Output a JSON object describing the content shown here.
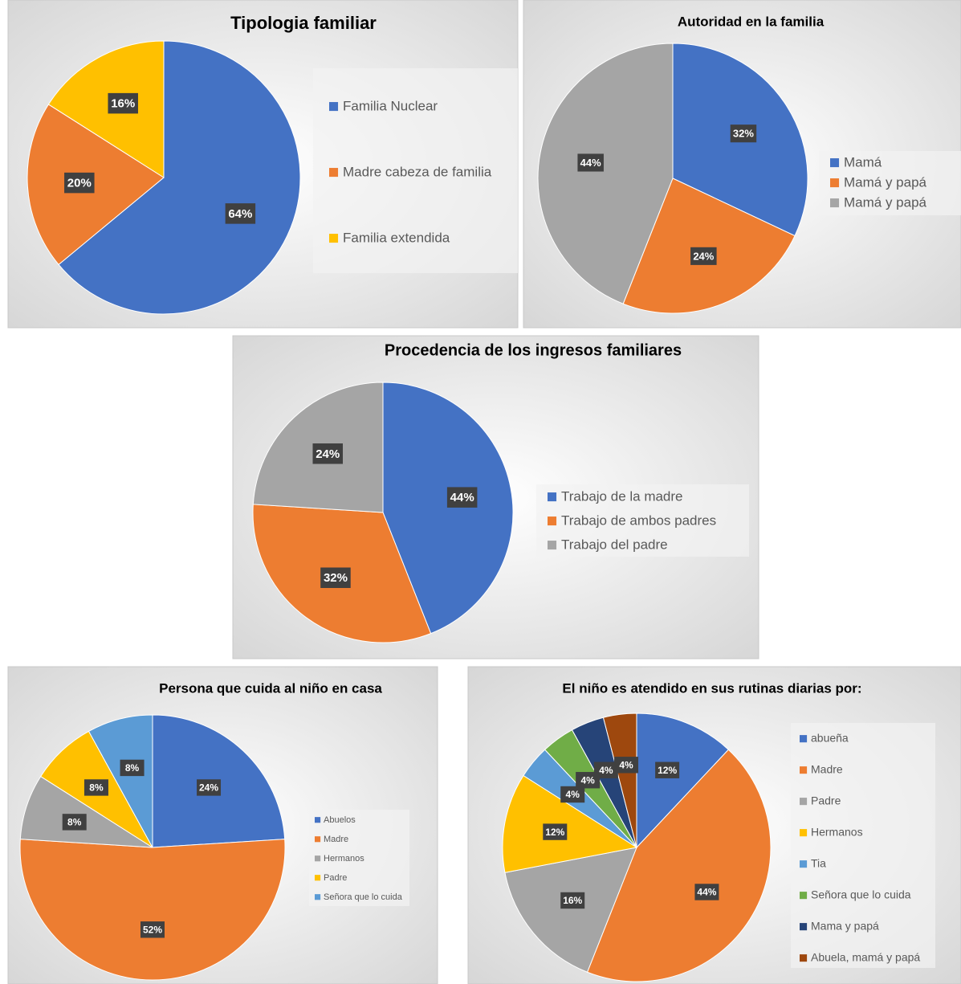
{
  "chart_data": [
    {
      "type": "pie",
      "title": "Tipologia familiar",
      "categories": [
        "Familia Nuclear",
        "Madre cabeza de familia",
        "Familia extendida"
      ],
      "values": [
        64,
        20,
        16
      ],
      "value_labels": [
        "64%",
        "20%",
        "16%"
      ],
      "colors": [
        "#4472c4",
        "#ed7d31",
        "#ffc000"
      ]
    },
    {
      "type": "pie",
      "title": "Autoridad en la familia",
      "categories": [
        "Mamá",
        "Mamá y papá",
        "Mamá y papá"
      ],
      "values": [
        32,
        24,
        44
      ],
      "value_labels": [
        "32%",
        "24%",
        "44%"
      ],
      "colors": [
        "#4472c4",
        "#ed7d31",
        "#a5a5a5"
      ]
    },
    {
      "type": "pie",
      "title": "Procedencia de los ingresos familiares",
      "categories": [
        "Trabajo de la madre",
        "Trabajo de ambos padres",
        "Trabajo del padre"
      ],
      "values": [
        44,
        32,
        24
      ],
      "value_labels": [
        "44%",
        "32%",
        "24%"
      ],
      "colors": [
        "#4472c4",
        "#ed7d31",
        "#a5a5a5"
      ]
    },
    {
      "type": "pie",
      "title": "Persona que cuida al niño en casa",
      "categories": [
        "Abuelos",
        "Madre",
        "Hermanos",
        "Padre",
        "Señora que lo cuida"
      ],
      "values": [
        24,
        52,
        8,
        8,
        8
      ],
      "value_labels": [
        "24%",
        "52%",
        "8%",
        "8%",
        "8%"
      ],
      "colors": [
        "#4472c4",
        "#ed7d31",
        "#a5a5a5",
        "#ffc000",
        "#5b9bd5"
      ]
    },
    {
      "type": "pie",
      "title": "El niño es atendido en sus rutinas diarias por:",
      "categories": [
        "abueña",
        "Madre",
        "Padre",
        "Hermanos",
        "Tia",
        "Señora que lo cuida",
        "Mama y papá",
        "Abuela, mamá y papá"
      ],
      "values": [
        12,
        44,
        16,
        12,
        4,
        4,
        4,
        4
      ],
      "value_labels": [
        "12%",
        "44%",
        "16%",
        "12%",
        "4%",
        "4%",
        "4%",
        "4%"
      ],
      "colors": [
        "#4472c4",
        "#ed7d31",
        "#a5a5a5",
        "#ffc000",
        "#5b9bd5",
        "#70ad47",
        "#264478",
        "#9e480e"
      ]
    }
  ]
}
